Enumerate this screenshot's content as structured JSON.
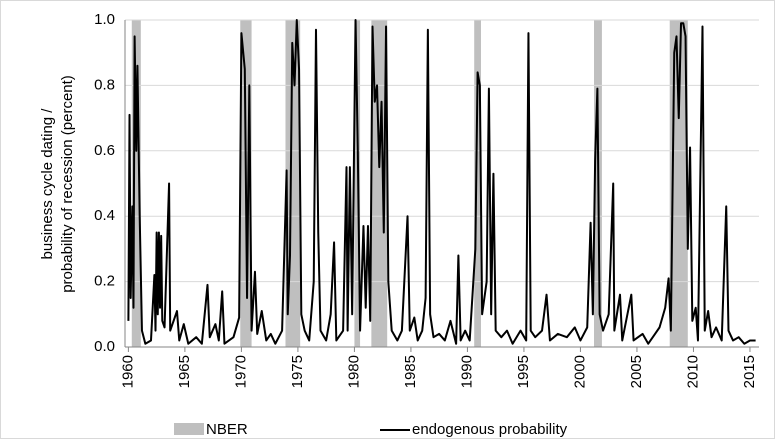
{
  "chart_data": {
    "type": "line",
    "ylabel": [
      "business cycle dating /",
      "probability of recession (percent)"
    ],
    "xlim": [
      1959.7,
      2015.8
    ],
    "xticks": [
      1960,
      1965,
      1970,
      1975,
      1980,
      1985,
      1990,
      1995,
      2000,
      2005,
      2010,
      2015
    ],
    "ylim": [
      0,
      1
    ],
    "yticks": [
      {
        "value": 0,
        "label": "0.0"
      },
      {
        "value": 0.2,
        "label": "0.2"
      },
      {
        "value": 0.4,
        "label": "0.4"
      },
      {
        "value": 0.6,
        "label": "0.6"
      },
      {
        "value": 0.8,
        "label": "0.8"
      },
      {
        "value": 1,
        "label": "1.0"
      }
    ],
    "grid": true,
    "recessions": {
      "name": "NBER",
      "color": "#bfbfbf",
      "x_start": [
        1960.3,
        1969.9,
        1973.9,
        1980.0,
        1981.5,
        1990.6,
        2001.2,
        2007.9
      ],
      "x_end": [
        1961.1,
        1970.9,
        1975.2,
        1980.5,
        1982.9,
        1991.2,
        2001.9,
        2009.5
      ],
      "values": [
        1,
        1,
        1,
        1,
        1,
        1,
        1,
        1
      ]
    },
    "series": [
      {
        "name": "endogenous probability",
        "color": "#000000",
        "x": [
          1960.0,
          1960.1,
          1960.2,
          1960.35,
          1960.45,
          1960.55,
          1960.7,
          1960.8,
          1961.0,
          1961.2,
          1961.5,
          1962.0,
          1962.3,
          1962.4,
          1962.5,
          1962.6,
          1962.7,
          1962.8,
          1962.9,
          1963.0,
          1963.2,
          1963.6,
          1963.7,
          1964.3,
          1964.5,
          1964.9,
          1965.3,
          1966.0,
          1966.5,
          1967.0,
          1967.2,
          1967.7,
          1968.0,
          1968.3,
          1968.5,
          1969.3,
          1969.8,
          1970.0,
          1970.3,
          1970.5,
          1970.7,
          1970.9,
          1971.2,
          1971.4,
          1971.8,
          1972.2,
          1972.6,
          1973.0,
          1973.6,
          1974.0,
          1974.1,
          1974.3,
          1974.5,
          1974.7,
          1974.9,
          1975.1,
          1975.3,
          1975.6,
          1976.0,
          1976.4,
          1976.6,
          1976.8,
          1977.0,
          1977.5,
          1977.9,
          1978.2,
          1978.4,
          1979.0,
          1979.3,
          1979.4,
          1979.6,
          1979.8,
          1980.1,
          1980.3,
          1980.5,
          1980.8,
          1981.0,
          1981.2,
          1981.4,
          1981.6,
          1981.8,
          1982.0,
          1982.2,
          1982.4,
          1982.6,
          1982.8,
          1983.0,
          1983.3,
          1983.8,
          1984.2,
          1984.7,
          1984.9,
          1985.3,
          1985.6,
          1986.0,
          1986.3,
          1986.5,
          1986.7,
          1987.0,
          1987.5,
          1988.0,
          1988.5,
          1989.0,
          1989.2,
          1989.4,
          1989.8,
          1990.2,
          1990.7,
          1990.9,
          1991.1,
          1991.3,
          1991.7,
          1991.9,
          1992.1,
          1992.3,
          1992.5,
          1993.0,
          1993.5,
          1994.0,
          1994.7,
          1995.2,
          1995.4,
          1995.6,
          1996.0,
          1996.6,
          1997.0,
          1997.3,
          1998.0,
          1998.8,
          1999.5,
          2000.0,
          2000.6,
          2000.9,
          2001.1,
          2001.3,
          2001.5,
          2001.7,
          2002.0,
          2002.5,
          2002.9,
          2003.0,
          2003.5,
          2003.7,
          2004.5,
          2004.7,
          2005.5,
          2006.0,
          2006.6,
          2007.0,
          2007.5,
          2007.8,
          2008.0,
          2008.3,
          2008.5,
          2008.7,
          2008.9,
          2009.1,
          2009.3,
          2009.5,
          2009.7,
          2009.9,
          2010.2,
          2010.4,
          2010.8,
          2011.0,
          2011.3,
          2011.6,
          2012.0,
          2012.5,
          2012.9,
          2013.1,
          2013.5,
          2014.0,
          2014.5,
          2015.0,
          2015.5
        ],
        "values": [
          0.08,
          0.71,
          0.15,
          0.43,
          0.12,
          0.95,
          0.6,
          0.86,
          0.4,
          0.05,
          0.01,
          0.02,
          0.22,
          0.05,
          0.35,
          0.1,
          0.35,
          0.12,
          0.34,
          0.08,
          0.06,
          0.5,
          0.05,
          0.11,
          0.02,
          0.07,
          0.01,
          0.03,
          0.01,
          0.19,
          0.03,
          0.07,
          0.02,
          0.17,
          0.01,
          0.03,
          0.09,
          0.96,
          0.85,
          0.15,
          0.8,
          0.05,
          0.23,
          0.04,
          0.11,
          0.02,
          0.04,
          0.01,
          0.05,
          0.54,
          0.1,
          0.28,
          0.93,
          0.8,
          1.0,
          0.85,
          0.1,
          0.05,
          0.02,
          0.2,
          0.97,
          0.35,
          0.05,
          0.02,
          0.1,
          0.32,
          0.02,
          0.05,
          0.55,
          0.05,
          0.55,
          0.1,
          1.0,
          0.6,
          0.05,
          0.37,
          0.12,
          0.37,
          0.08,
          0.98,
          0.75,
          0.8,
          0.55,
          0.75,
          0.35,
          0.98,
          0.2,
          0.05,
          0.02,
          0.05,
          0.4,
          0.05,
          0.09,
          0.02,
          0.05,
          0.15,
          0.97,
          0.1,
          0.03,
          0.04,
          0.02,
          0.08,
          0.01,
          0.28,
          0.02,
          0.05,
          0.02,
          0.3,
          0.84,
          0.8,
          0.1,
          0.2,
          0.79,
          0.1,
          0.53,
          0.05,
          0.03,
          0.05,
          0.01,
          0.05,
          0.02,
          0.96,
          0.05,
          0.03,
          0.05,
          0.16,
          0.02,
          0.04,
          0.03,
          0.06,
          0.02,
          0.06,
          0.38,
          0.1,
          0.57,
          0.79,
          0.1,
          0.05,
          0.1,
          0.5,
          0.05,
          0.16,
          0.02,
          0.16,
          0.02,
          0.04,
          0.01,
          0.04,
          0.06,
          0.12,
          0.21,
          0.05,
          0.9,
          0.95,
          0.7,
          0.99,
          0.99,
          0.95,
          0.3,
          0.61,
          0.08,
          0.12,
          0.02,
          0.98,
          0.05,
          0.11,
          0.03,
          0.06,
          0.02,
          0.43,
          0.05,
          0.02,
          0.03,
          0.01,
          0.02,
          0.02
        ]
      }
    ]
  }
}
